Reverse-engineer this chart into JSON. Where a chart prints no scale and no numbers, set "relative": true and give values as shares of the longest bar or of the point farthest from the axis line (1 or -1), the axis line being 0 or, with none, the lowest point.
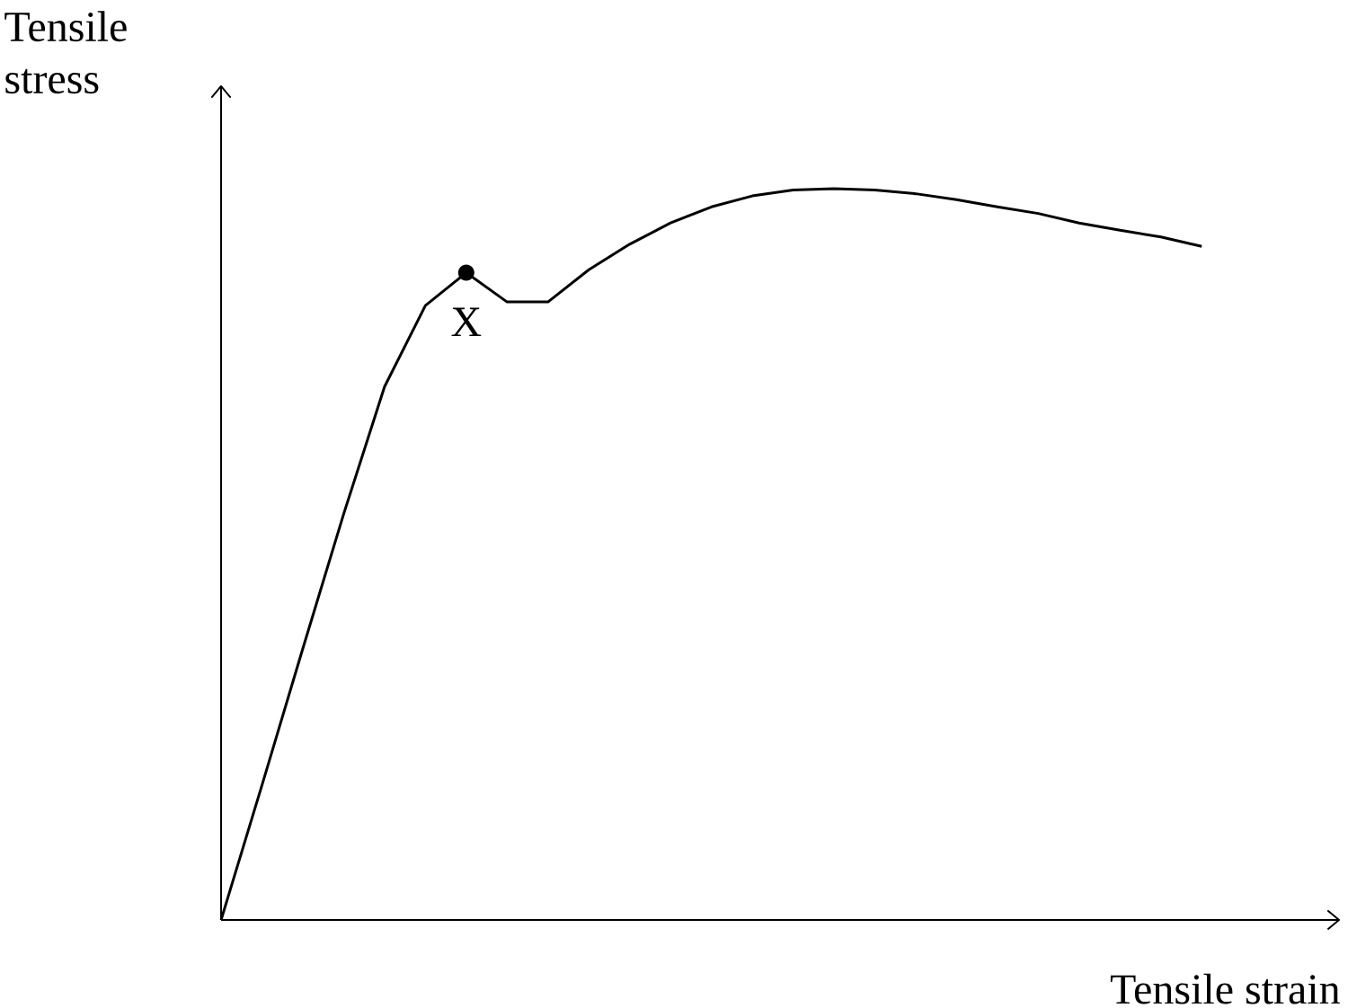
{
  "chart_data": {
    "type": "line",
    "relative": true,
    "xlabel": "Tensile strain",
    "ylabel": "Tensile stress",
    "categories": [
      null,
      null,
      null,
      null,
      null,
      null,
      null,
      null,
      null,
      null,
      null,
      null,
      null,
      null,
      null,
      null,
      null,
      null,
      null,
      null,
      null,
      null,
      null,
      null,
      null
    ],
    "series": [
      {
        "color": "#000000",
        "values": [
          0,
          0.184,
          0.371,
          0.555,
          0.729,
          0.84,
          0.885,
          0.845,
          0.845,
          0.889,
          0.924,
          0.953,
          0.975,
          0.99,
          0.998,
          1,
          0.998,
          0.993,
          0.985,
          0.975,
          0.966,
          0.953,
          0.943,
          0.934,
          0.921
        ]
      }
    ],
    "annotations": [
      {
        "text": "X",
        "y": 0.885
      }
    ]
  }
}
